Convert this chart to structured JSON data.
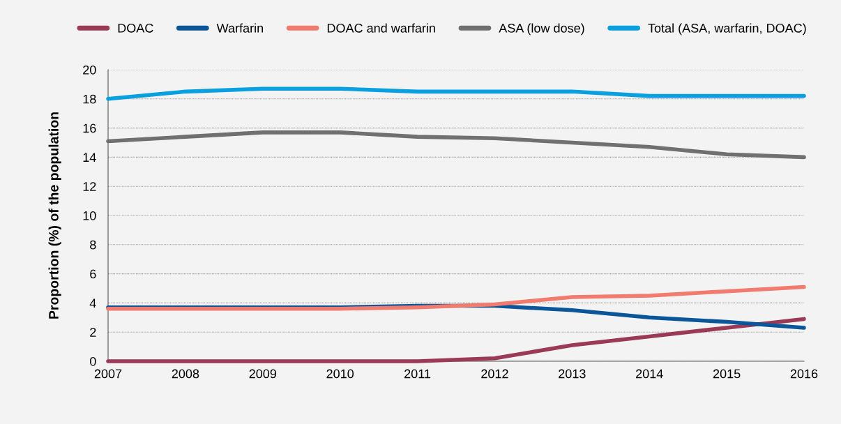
{
  "chart_data": {
    "type": "line",
    "ylabel": "Proportion (%) of the population",
    "x": [
      2007,
      2008,
      2009,
      2010,
      2011,
      2012,
      2013,
      2014,
      2015,
      2016
    ],
    "series": [
      {
        "name": "DOAC",
        "color": "#9b3a56",
        "values": [
          0,
          0,
          0,
          0,
          0,
          0.2,
          1.1,
          1.7,
          2.3,
          2.9
        ]
      },
      {
        "name": "Warfarin",
        "color": "#0b5699",
        "values": [
          3.7,
          3.7,
          3.7,
          3.7,
          3.8,
          3.8,
          3.5,
          3.0,
          2.7,
          2.3
        ]
      },
      {
        "name": "DOAC and warfarin",
        "color": "#f07b6e",
        "values": [
          3.6,
          3.6,
          3.6,
          3.6,
          3.7,
          3.9,
          4.4,
          4.5,
          4.8,
          5.1
        ]
      },
      {
        "name": "ASA (low dose)",
        "color": "#707070",
        "values": [
          15.1,
          15.4,
          15.7,
          15.7,
          15.4,
          15.3,
          15.0,
          14.7,
          14.2,
          14.0
        ]
      },
      {
        "name": "Total (ASA, warfarin, DOAC)",
        "color": "#0aa0e0",
        "values": [
          18.0,
          18.5,
          18.7,
          18.7,
          18.5,
          18.5,
          18.5,
          18.2,
          18.2,
          18.2
        ]
      }
    ],
    "xlim": [
      2007,
      2016
    ],
    "xticks": [
      2007,
      2008,
      2009,
      2010,
      2011,
      2012,
      2013,
      2014,
      2015,
      2016
    ],
    "ylim": [
      0,
      20
    ],
    "yticks": [
      0,
      2,
      4,
      6,
      8,
      10,
      12,
      14,
      16,
      18,
      20
    ],
    "grid": "y",
    "legend": "top right",
    "marker": "none",
    "line_style": "solid"
  }
}
